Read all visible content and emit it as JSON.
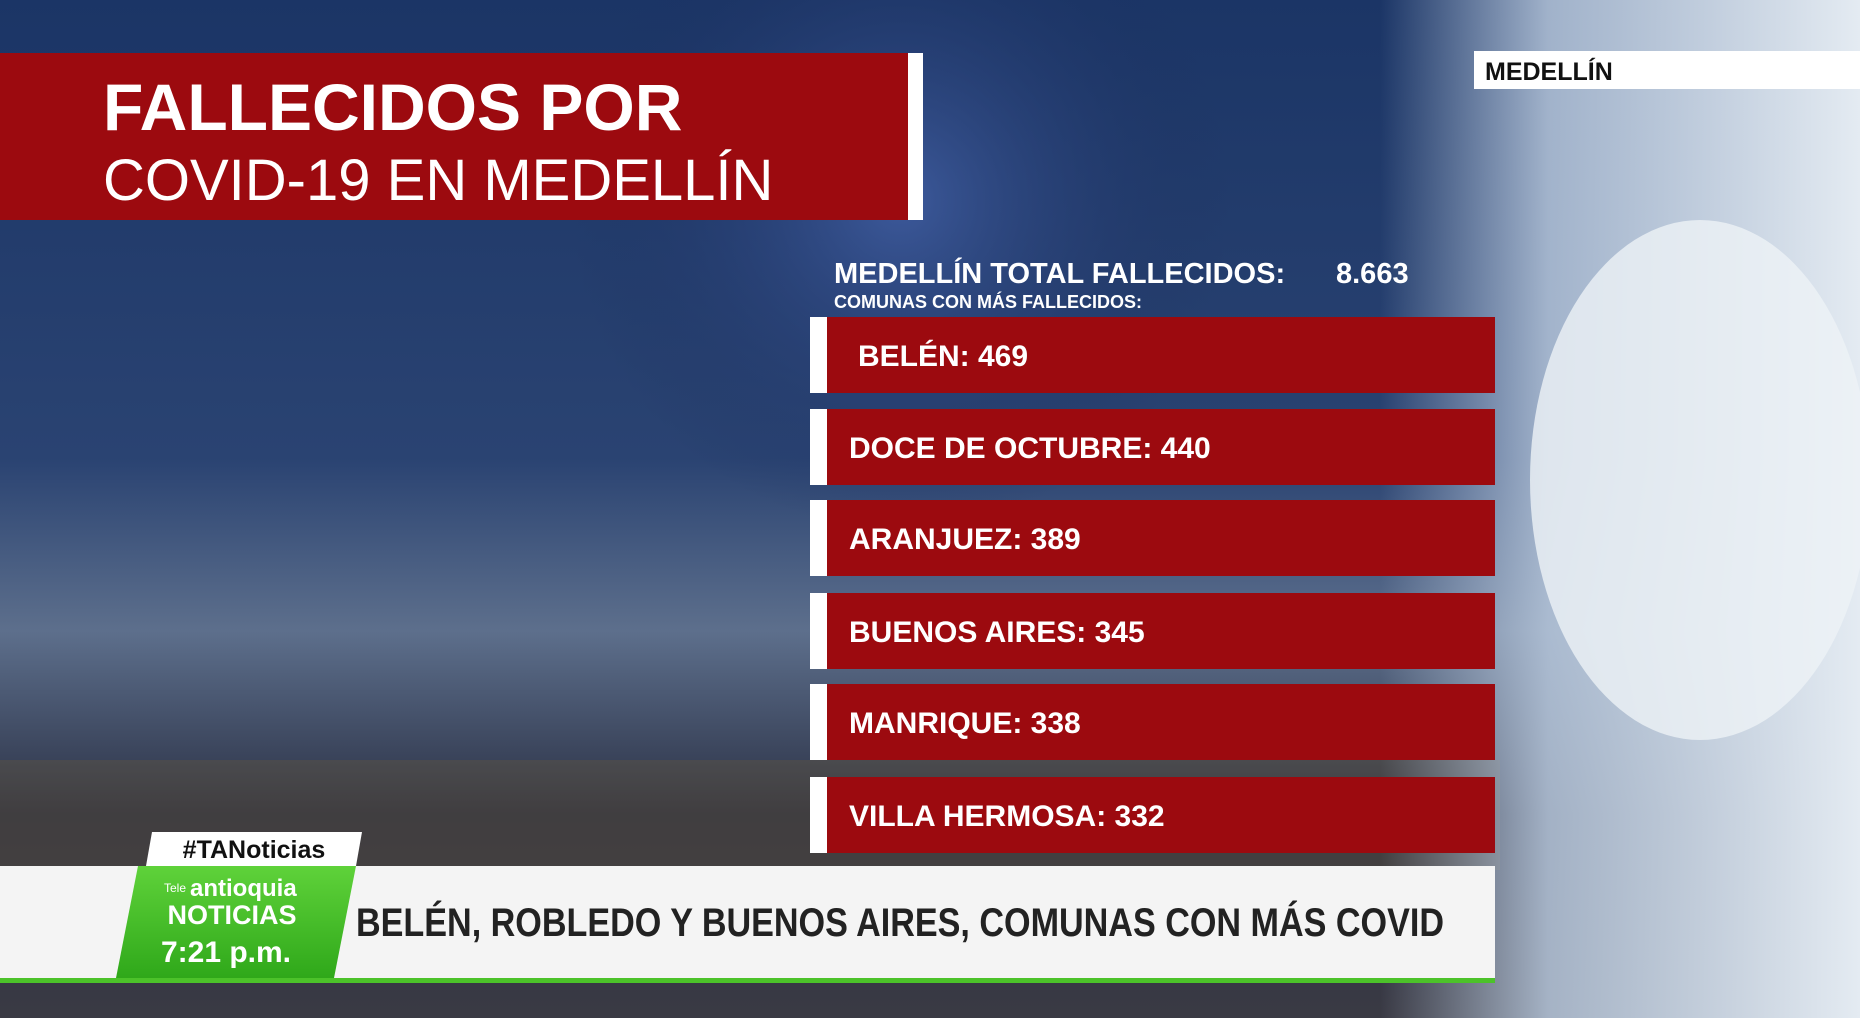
{
  "header": {
    "title_line1": "FALLECIDOS POR",
    "title_line2": "COVID-19 EN MEDELLÍN",
    "location": "MEDELLÍN"
  },
  "summary": {
    "label": "MEDELLÍN TOTAL FALLECIDOS:",
    "total": "8.663",
    "subtitle": "COMUNAS CON MÁS FALLECIDOS:"
  },
  "list": {
    "items": [
      "BELÉN: 469",
      "DOCE DE OCTUBRE: 440",
      "ARANJUEZ: 389",
      "BUENOS AIRES: 345",
      "MANRIQUE: 338",
      "VILLA HERMOSA: 332"
    ]
  },
  "ticker": {
    "hashtag": "#TANoticias",
    "logo_prefix": "Tele",
    "logo_brand": "antioquia",
    "logo_name": "NOTICIAS",
    "time": "7:21 p.m.",
    "headline": "BELÉN, ROBLEDO Y BUENOS AIRES, COMUNAS CON MÁS COVID"
  }
}
